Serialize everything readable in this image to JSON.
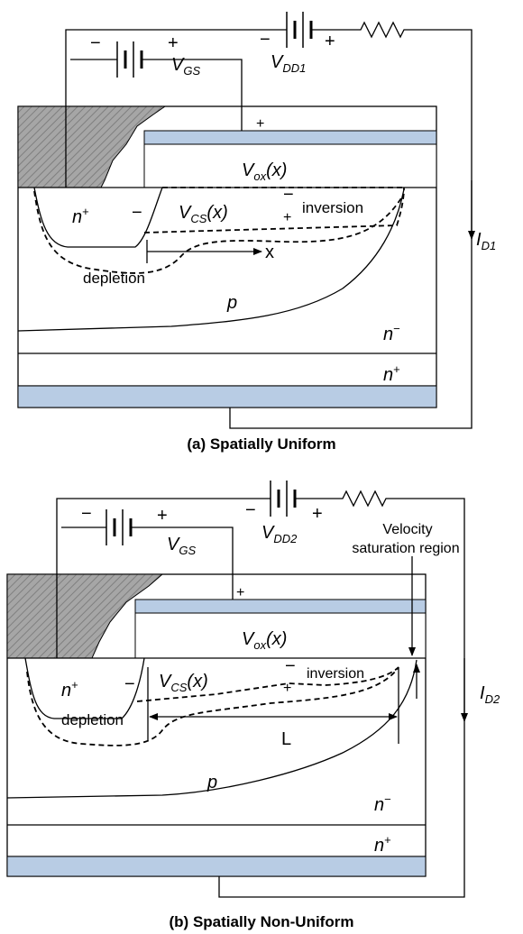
{
  "panel_a": {
    "vgs_battery": {
      "minus": "−",
      "plus": "+",
      "label": {
        "base": "V",
        "sub": "GS"
      }
    },
    "vdd_battery": {
      "minus": "−",
      "plus": "+",
      "label": {
        "base": "V",
        "sub": "DD1"
      }
    },
    "gate_plus": "+",
    "vox": {
      "base": "V",
      "sub": "ox",
      "tail": "(x)"
    },
    "source": {
      "base": "n",
      "sup": "+"
    },
    "source_minus": "−",
    "vcs": {
      "base": "V",
      "sub": "CS",
      "tail": "(x)",
      "minus": "−",
      "plus": "+"
    },
    "inversion": "inversion",
    "x_axis": "x",
    "depletion": "depletion",
    "p_region": "p",
    "n_minus": {
      "base": "n",
      "sup": "−"
    },
    "n_plus": {
      "base": "n",
      "sup": "+"
    },
    "current": {
      "base": "I",
      "sub": "D1"
    },
    "caption": "(a)  Spatially Uniform"
  },
  "panel_b": {
    "vgs_battery": {
      "minus": "−",
      "plus": "+",
      "label": {
        "base": "V",
        "sub": "GS"
      }
    },
    "vdd_battery": {
      "minus": "−",
      "plus": "+",
      "label": {
        "base": "V",
        "sub": "DD2"
      }
    },
    "velocity": [
      "Velocity",
      "saturation region"
    ],
    "gate_plus": "+",
    "vox": {
      "base": "V",
      "sub": "ox",
      "tail": "(x)"
    },
    "source": {
      "base": "n",
      "sup": "+"
    },
    "source_minus": "−",
    "vcs": {
      "base": "V",
      "sub": "CS",
      "tail": "(x)",
      "minus": "−",
      "plus": "+"
    },
    "inversion": "inversion",
    "depletion": "depletion",
    "length": "L",
    "p_region": "p",
    "n_minus": {
      "base": "n",
      "sup": "−"
    },
    "n_plus": {
      "base": "n",
      "sup": "+"
    },
    "current": {
      "base": "I",
      "sub": "D2"
    },
    "caption": "(b)  Spatially Non-Uniform"
  }
}
